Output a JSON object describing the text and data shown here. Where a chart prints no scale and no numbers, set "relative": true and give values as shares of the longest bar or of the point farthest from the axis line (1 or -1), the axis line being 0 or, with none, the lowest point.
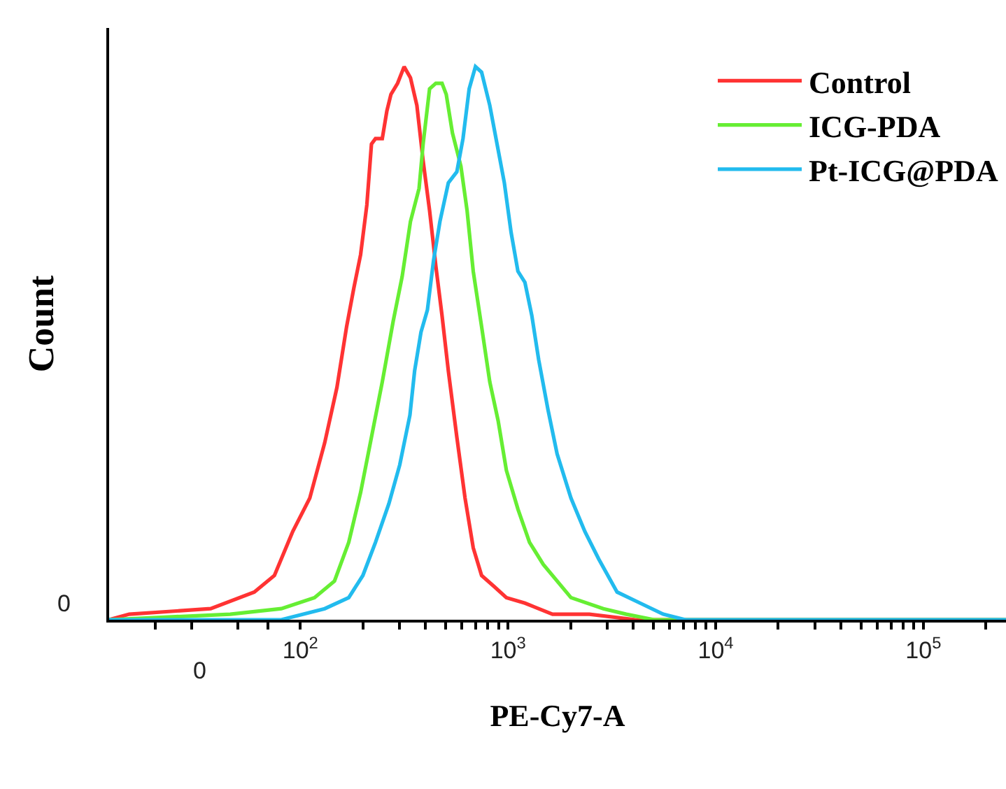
{
  "chart_data": {
    "type": "line",
    "relative": true,
    "xlabel": "PE-Cy7-A",
    "ylabel": "Count",
    "legend": "top right",
    "marker": "none",
    "line_style": "solid",
    "log": "x",
    "xlim": [
      12,
      250000
    ],
    "xticks": [
      {
        "value": 20,
        "label": null
      },
      {
        "value": 30,
        "label": null
      },
      {
        "value": 50,
        "label": null
      },
      {
        "value": 70,
        "label": null
      },
      {
        "value": 100,
        "label": "10$^{2}$"
      },
      {
        "value": 200,
        "label": null
      },
      {
        "value": 300,
        "label": null
      },
      {
        "value": 400,
        "label": null
      },
      {
        "value": 500,
        "label": null
      },
      {
        "value": 600,
        "label": null
      },
      {
        "value": 700,
        "label": null
      },
      {
        "value": 800,
        "label": null
      },
      {
        "value": 900,
        "label": null
      },
      {
        "value": 1000,
        "label": "10$^{3}$"
      },
      {
        "value": 2000,
        "label": null
      },
      {
        "value": 3000,
        "label": null
      },
      {
        "value": 4000,
        "label": null
      },
      {
        "value": 5000,
        "label": null
      },
      {
        "value": 6000,
        "label": null
      },
      {
        "value": 7000,
        "label": null
      },
      {
        "value": 8000,
        "label": null
      },
      {
        "value": 9000,
        "label": null
      },
      {
        "value": 10000,
        "label": "10$^{4}$"
      },
      {
        "value": 20000,
        "label": null
      },
      {
        "value": 30000,
        "label": null
      },
      {
        "value": 40000,
        "label": null
      },
      {
        "value": 50000,
        "label": null
      },
      {
        "value": 60000,
        "label": null
      },
      {
        "value": 70000,
        "label": null
      },
      {
        "value": 80000,
        "label": null
      },
      {
        "value": 90000,
        "label": null
      },
      {
        "value": 100000,
        "label": "10$^{5}$"
      },
      {
        "value": 200000,
        "label": null
      }
    ],
    "annotations": [
      "0",
      "0"
    ],
    "series": [
      {
        "name": "Control",
        "color": "#ff3333",
        "x": [
          12,
          15,
          37,
          60,
          75,
          92,
          111,
          131,
          150,
          167,
          181,
          195,
          209,
          220,
          230,
          248,
          261,
          273,
          294,
          316,
          339,
          364,
          390,
          419,
          449,
          481,
          516,
          567,
          621,
          680,
          746,
          857,
          982,
          1206,
          1638,
          2466,
          4112,
          250000
        ],
        "values": [
          0,
          0.01,
          0.02,
          0.05,
          0.08,
          0.16,
          0.22,
          0.32,
          0.42,
          0.53,
          0.6,
          0.66,
          0.75,
          0.86,
          0.87,
          0.87,
          0.92,
          0.95,
          0.97,
          1.0,
          0.98,
          0.93,
          0.83,
          0.74,
          0.64,
          0.55,
          0.45,
          0.33,
          0.22,
          0.13,
          0.08,
          0.06,
          0.04,
          0.03,
          0.01,
          0.01,
          0,
          0
        ]
      },
      {
        "name": "ICG-PDA",
        "color": "#66ee33",
        "x": [
          12,
          46,
          81,
          117,
          146,
          171,
          195,
          220,
          248,
          280,
          309,
          339,
          373,
          390,
          419,
          449,
          481,
          504,
          540,
          593,
          635,
          680,
          746,
          817,
          896,
          982,
          1116,
          1269,
          1478,
          2009,
          2877,
          3712,
          5045,
          250000
        ],
        "values": [
          0,
          0.01,
          0.02,
          0.04,
          0.07,
          0.14,
          0.23,
          0.33,
          0.43,
          0.54,
          0.62,
          0.72,
          0.78,
          0.86,
          0.96,
          0.97,
          0.97,
          0.95,
          0.88,
          0.82,
          0.74,
          0.63,
          0.53,
          0.43,
          0.36,
          0.27,
          0.2,
          0.14,
          0.1,
          0.04,
          0.02,
          0.01,
          0,
          0
        ]
      },
      {
        "name": "Pt-ICG@PDA",
        "color": "#22bbee",
        "x": [
          12,
          81,
          131,
          171,
          200,
          230,
          267,
          301,
          337,
          355,
          381,
          409,
          438,
          470,
          516,
          567,
          607,
          650,
          697,
          746,
          817,
          896,
          960,
          1035,
          1116,
          1206,
          1302,
          1405,
          1557,
          1723,
          2009,
          2341,
          2731,
          3351,
          4327,
          5589,
          7140,
          250000
        ],
        "values": [
          0,
          0,
          0.02,
          0.04,
          0.08,
          0.14,
          0.21,
          0.28,
          0.37,
          0.45,
          0.52,
          0.56,
          0.65,
          0.72,
          0.79,
          0.81,
          0.87,
          0.96,
          1.0,
          0.99,
          0.93,
          0.85,
          0.79,
          0.7,
          0.63,
          0.61,
          0.55,
          0.47,
          0.38,
          0.3,
          0.22,
          0.16,
          0.11,
          0.05,
          0.03,
          0.01,
          0,
          0
        ]
      }
    ]
  }
}
